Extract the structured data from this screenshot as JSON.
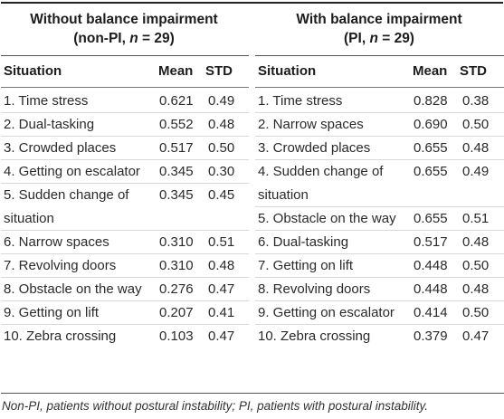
{
  "groups": {
    "left": {
      "title": "Without balance impairment",
      "subtitle_prefix": "(non-PI, ",
      "subtitle_n": "n",
      "subtitle_suffix": " = 29)"
    },
    "right": {
      "title": "With balance impairment",
      "subtitle_prefix": "(PI, ",
      "subtitle_n": "n",
      "subtitle_suffix": " = 29)"
    }
  },
  "columns": {
    "situation": "Situation",
    "mean": "Mean",
    "std": "STD"
  },
  "left_rows": [
    {
      "lines": [
        "1. Time stress"
      ],
      "mean": "0.621",
      "std": "0.49"
    },
    {
      "lines": [
        "2. Dual-tasking"
      ],
      "mean": "0.552",
      "std": "0.48"
    },
    {
      "lines": [
        "3. Crowded places"
      ],
      "mean": "0.517",
      "std": "0.50"
    },
    {
      "lines": [
        "4. Getting on escalator"
      ],
      "mean": "0.345",
      "std": "0.30"
    },
    {
      "lines": [
        "5. Sudden change of",
        "situation"
      ],
      "mean": "0.345",
      "std": "0.45"
    },
    {
      "lines": [
        "6. Narrow spaces"
      ],
      "mean": "0.310",
      "std": "0.51"
    },
    {
      "lines": [
        "7. Revolving doors"
      ],
      "mean": "0.310",
      "std": "0.48"
    },
    {
      "lines": [
        "8. Obstacle on the way"
      ],
      "mean": "0.276",
      "std": "0.47"
    },
    {
      "lines": [
        "9. Getting on lift"
      ],
      "mean": "0.207",
      "std": "0.41"
    },
    {
      "lines": [
        "10. Zebra crossing"
      ],
      "mean": "0.103",
      "std": "0.47"
    }
  ],
  "right_rows": [
    {
      "lines": [
        "1. Time stress"
      ],
      "mean": "0.828",
      "std": "0.38"
    },
    {
      "lines": [
        "2. Narrow spaces"
      ],
      "mean": "0.690",
      "std": "0.50"
    },
    {
      "lines": [
        "3. Crowded places"
      ],
      "mean": "0.655",
      "std": "0.48"
    },
    {
      "lines": [
        "4. Sudden change of",
        "situation"
      ],
      "mean": "0.655",
      "std": "0.49"
    },
    {
      "lines": [
        "5. Obstacle on the way"
      ],
      "mean": "0.655",
      "std": "0.51"
    },
    {
      "lines": [
        "6. Dual-tasking"
      ],
      "mean": "0.517",
      "std": "0.48"
    },
    {
      "lines": [
        "7. Getting on lift"
      ],
      "mean": "0.448",
      "std": "0.50"
    },
    {
      "lines": [
        "8. Revolving doors"
      ],
      "mean": "0.448",
      "std": "0.48"
    },
    {
      "lines": [
        "9. Getting on escalator"
      ],
      "mean": "0.414",
      "std": "0.50"
    },
    {
      "lines": [
        "10. Zebra crossing"
      ],
      "mean": "0.379",
      "std": "0.47"
    }
  ],
  "footnote": "Non-PI, patients without postural instability; PI, patients with postural instability."
}
